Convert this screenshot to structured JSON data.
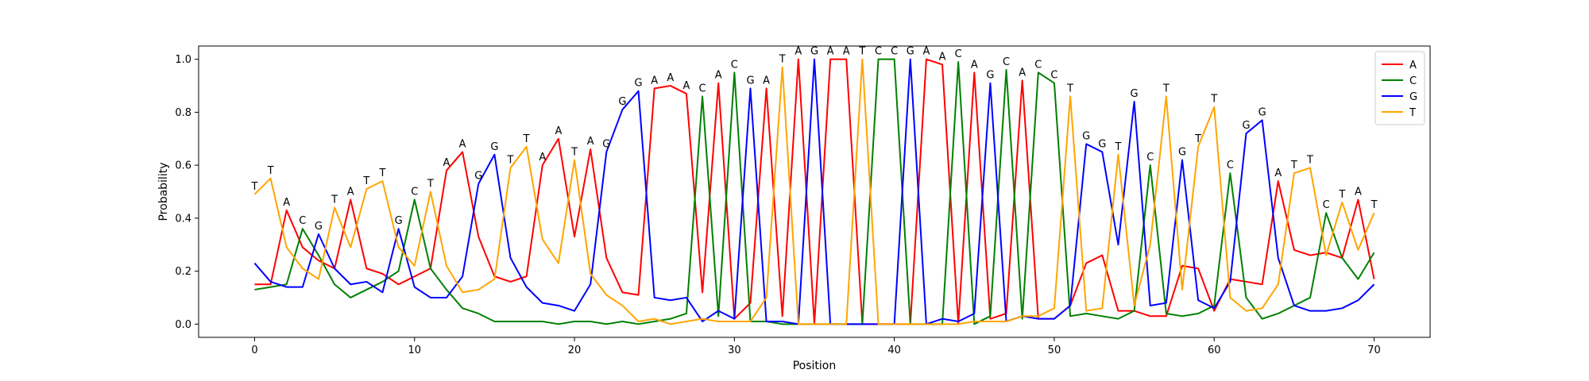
{
  "chart_data": {
    "type": "line",
    "xlabel": "Position",
    "ylabel": "Probability",
    "xlim": [
      -3.5,
      73.5
    ],
    "ylim": [
      -0.05,
      1.05
    ],
    "xticks": [
      0,
      10,
      20,
      30,
      40,
      50,
      60,
      70
    ],
    "yticks": [
      0.0,
      0.2,
      0.4,
      0.6,
      0.8,
      1.0
    ],
    "grid": false,
    "legend_position": "top-right",
    "colors": {
      "A": "#ff0000",
      "C": "#008000",
      "G": "#0000ff",
      "T": "#ffa500"
    },
    "x": [
      0,
      1,
      2,
      3,
      4,
      5,
      6,
      7,
      8,
      9,
      10,
      11,
      12,
      13,
      14,
      15,
      16,
      17,
      18,
      19,
      20,
      21,
      22,
      23,
      24,
      25,
      26,
      27,
      28,
      29,
      30,
      31,
      32,
      33,
      34,
      35,
      36,
      37,
      38,
      39,
      40,
      41,
      42,
      43,
      44,
      45,
      46,
      47,
      48,
      49,
      50,
      51,
      52,
      53,
      54,
      55,
      56,
      57,
      58,
      59,
      60,
      61,
      62,
      63,
      64,
      65,
      66,
      67,
      68,
      69,
      70
    ],
    "series": [
      {
        "name": "A",
        "values": [
          0.15,
          0.15,
          0.43,
          0.29,
          0.24,
          0.21,
          0.47,
          0.21,
          0.19,
          0.15,
          0.18,
          0.21,
          0.58,
          0.65,
          0.33,
          0.18,
          0.16,
          0.18,
          0.6,
          0.7,
          0.33,
          0.66,
          0.25,
          0.12,
          0.11,
          0.89,
          0.9,
          0.87,
          0.12,
          0.91,
          0.02,
          0.08,
          0.89,
          0.03,
          1.0,
          0.0,
          1.0,
          1.0,
          0.0,
          0.0,
          0.0,
          0.0,
          1.0,
          0.98,
          0.0,
          0.95,
          0.02,
          0.04,
          0.92,
          0.02,
          0.02,
          0.07,
          0.23,
          0.26,
          0.05,
          0.05,
          0.03,
          0.03,
          0.22,
          0.21,
          0.05,
          0.17,
          0.16,
          0.15,
          0.54,
          0.28,
          0.26,
          0.27,
          0.25,
          0.47,
          0.17
        ]
      },
      {
        "name": "C",
        "values": [
          0.13,
          0.14,
          0.15,
          0.36,
          0.26,
          0.15,
          0.1,
          0.13,
          0.16,
          0.2,
          0.47,
          0.21,
          0.13,
          0.06,
          0.04,
          0.01,
          0.01,
          0.01,
          0.01,
          0.0,
          0.01,
          0.01,
          0.0,
          0.01,
          0.0,
          0.01,
          0.02,
          0.04,
          0.86,
          0.03,
          0.95,
          0.01,
          0.01,
          0.0,
          0.0,
          0.0,
          0.0,
          0.0,
          0.0,
          1.0,
          1.0,
          0.0,
          0.0,
          0.0,
          0.99,
          0.0,
          0.03,
          0.96,
          0.02,
          0.95,
          0.91,
          0.03,
          0.04,
          0.03,
          0.02,
          0.05,
          0.6,
          0.04,
          0.03,
          0.04,
          0.07,
          0.57,
          0.1,
          0.02,
          0.04,
          0.07,
          0.1,
          0.42,
          0.25,
          0.17,
          0.27
        ]
      },
      {
        "name": "G",
        "values": [
          0.23,
          0.16,
          0.14,
          0.14,
          0.34,
          0.21,
          0.15,
          0.16,
          0.12,
          0.36,
          0.14,
          0.1,
          0.1,
          0.18,
          0.53,
          0.64,
          0.25,
          0.14,
          0.08,
          0.07,
          0.05,
          0.15,
          0.65,
          0.81,
          0.88,
          0.1,
          0.09,
          0.1,
          0.01,
          0.05,
          0.02,
          0.89,
          0.01,
          0.01,
          0.0,
          1.0,
          0.0,
          0.0,
          0.0,
          0.0,
          0.0,
          1.0,
          0.0,
          0.02,
          0.01,
          0.04,
          0.91,
          0.01,
          0.03,
          0.02,
          0.02,
          0.07,
          0.68,
          0.65,
          0.3,
          0.84,
          0.07,
          0.08,
          0.62,
          0.09,
          0.06,
          0.16,
          0.72,
          0.77,
          0.25,
          0.07,
          0.05,
          0.05,
          0.06,
          0.09,
          0.15
        ]
      },
      {
        "name": "T",
        "values": [
          0.49,
          0.55,
          0.29,
          0.21,
          0.17,
          0.44,
          0.29,
          0.51,
          0.54,
          0.29,
          0.22,
          0.5,
          0.22,
          0.12,
          0.13,
          0.17,
          0.59,
          0.67,
          0.32,
          0.23,
          0.62,
          0.19,
          0.11,
          0.07,
          0.01,
          0.02,
          0.0,
          0.01,
          0.02,
          0.01,
          0.01,
          0.01,
          0.1,
          0.97,
          0.0,
          0.0,
          0.0,
          0.0,
          1.0,
          0.0,
          0.0,
          0.0,
          0.0,
          0.0,
          0.0,
          0.01,
          0.01,
          0.01,
          0.03,
          0.03,
          0.06,
          0.86,
          0.05,
          0.06,
          0.64,
          0.07,
          0.3,
          0.86,
          0.13,
          0.67,
          0.82,
          0.1,
          0.05,
          0.06,
          0.15,
          0.57,
          0.59,
          0.26,
          0.46,
          0.28,
          0.42
        ]
      }
    ],
    "consensus_labels": [
      "T",
      "T",
      "A",
      "C",
      "G",
      "T",
      "A",
      "T",
      "T",
      "G",
      "C",
      "T",
      "A",
      "A",
      "G",
      "G",
      "T",
      "T",
      "A",
      "A",
      "T",
      "A",
      "G",
      "G",
      "G",
      "A",
      "A",
      "A",
      "C",
      "A",
      "C",
      "G",
      "A",
      "T",
      "A",
      "G",
      "A",
      "A",
      "T",
      "C",
      "C",
      "G",
      "A",
      "A",
      "C",
      "A",
      "G",
      "C",
      "A",
      "C",
      "C",
      "T",
      "G",
      "G",
      "T",
      "G",
      "C",
      "T",
      "G",
      "T",
      "T",
      "C",
      "G",
      "G",
      "A",
      "T",
      "T",
      "C",
      "T",
      "A",
      "T"
    ]
  }
}
